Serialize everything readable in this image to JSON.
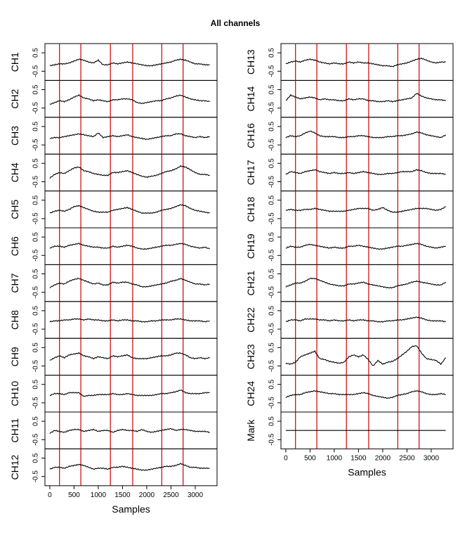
{
  "title": "All channels",
  "chart_data": {
    "type": "line",
    "title": "All channels",
    "xlabel": "Samples",
    "xlim": [
      -100,
      3450
    ],
    "ylim": [
      -1,
      1
    ],
    "x_ticks": [
      0,
      500,
      1000,
      1500,
      2000,
      2500,
      3000
    ],
    "y_ticks": [
      -0.5,
      0.5
    ],
    "marker_lines_x": [
      200,
      640,
      1250,
      1710,
      2310,
      2750
    ],
    "marker_color": "#cc0000",
    "line_color": "#000000",
    "sample_x": [
      0,
      100,
      200,
      300,
      400,
      500,
      600,
      700,
      800,
      900,
      1000,
      1100,
      1200,
      1300,
      1400,
      1500,
      1600,
      1700,
      1800,
      1900,
      2000,
      2100,
      2200,
      2300,
      2400,
      2500,
      2600,
      2700,
      2800,
      2900,
      3000,
      3100,
      3200,
      3300
    ],
    "panels": [
      {
        "column": "left",
        "channels": [
          {
            "name": "CH1",
            "values": [
              -0.2,
              -0.15,
              -0.1,
              -0.1,
              -0.05,
              0.05,
              0.15,
              0.1,
              0.0,
              -0.05,
              0.1,
              -0.15,
              -0.15,
              -0.05,
              -0.1,
              -0.05,
              0.0,
              -0.05,
              -0.1,
              -0.15,
              -0.2,
              -0.2,
              -0.15,
              -0.1,
              -0.05,
              0.0,
              0.1,
              0.15,
              0.1,
              0.0,
              -0.1,
              -0.1,
              -0.15,
              -0.15
            ]
          },
          {
            "name": "CH2",
            "values": [
              -0.3,
              -0.2,
              -0.1,
              -0.15,
              -0.05,
              0.1,
              0.2,
              0.05,
              0.0,
              -0.1,
              -0.05,
              -0.1,
              -0.15,
              -0.05,
              -0.05,
              0.0,
              0.0,
              -0.05,
              -0.2,
              -0.25,
              -0.2,
              -0.15,
              -0.1,
              -0.1,
              0.0,
              0.05,
              0.15,
              0.2,
              0.1,
              0.0,
              -0.05,
              -0.1,
              -0.1,
              -0.15
            ]
          },
          {
            "name": "CH3",
            "values": [
              -0.15,
              -0.1,
              -0.1,
              -0.05,
              0.0,
              0.05,
              0.1,
              0.05,
              0.0,
              -0.05,
              0.15,
              -0.1,
              -0.05,
              0.0,
              -0.05,
              0.0,
              0.05,
              -0.05,
              -0.1,
              -0.15,
              -0.2,
              -0.15,
              -0.1,
              -0.05,
              0.0,
              0.0,
              0.1,
              0.1,
              0.0,
              -0.05,
              -0.1,
              -0.05,
              -0.1,
              -0.05
            ]
          },
          {
            "name": "CH4",
            "values": [
              -0.3,
              -0.1,
              0.0,
              -0.05,
              0.1,
              0.25,
              0.3,
              0.1,
              0.05,
              -0.05,
              -0.1,
              -0.15,
              -0.15,
              0.0,
              0.0,
              0.05,
              0.1,
              0.0,
              -0.1,
              -0.2,
              -0.25,
              -0.2,
              -0.15,
              -0.05,
              0.05,
              0.1,
              0.2,
              0.35,
              0.3,
              0.15,
              0.0,
              -0.1,
              -0.1,
              -0.15
            ]
          },
          {
            "name": "CH5",
            "values": [
              -0.2,
              -0.1,
              -0.05,
              -0.1,
              0.0,
              0.15,
              0.2,
              0.1,
              0.0,
              -0.1,
              -0.15,
              -0.15,
              -0.15,
              -0.05,
              0.0,
              0.05,
              0.1,
              0.0,
              -0.1,
              -0.2,
              -0.2,
              -0.2,
              -0.15,
              -0.05,
              0.0,
              0.05,
              0.15,
              0.25,
              0.2,
              0.05,
              -0.05,
              -0.1,
              -0.15,
              -0.2
            ]
          },
          {
            "name": "CH6",
            "values": [
              -0.1,
              0.0,
              0.0,
              -0.05,
              0.05,
              0.1,
              0.15,
              0.05,
              0.0,
              -0.05,
              -0.05,
              -0.1,
              -0.1,
              0.0,
              -0.05,
              0.0,
              0.05,
              0.0,
              -0.1,
              -0.15,
              -0.15,
              -0.1,
              -0.05,
              0.0,
              0.05,
              0.05,
              0.1,
              0.15,
              0.1,
              0.0,
              -0.05,
              -0.1,
              -0.05,
              -0.15
            ]
          },
          {
            "name": "CH7",
            "values": [
              -0.25,
              -0.1,
              0.0,
              -0.05,
              0.1,
              0.2,
              0.25,
              0.15,
              0.05,
              -0.05,
              0.0,
              -0.1,
              -0.1,
              0.05,
              0.0,
              0.05,
              0.05,
              -0.05,
              -0.1,
              -0.2,
              -0.2,
              -0.15,
              -0.1,
              -0.05,
              0.0,
              0.1,
              0.15,
              0.25,
              0.15,
              0.05,
              -0.05,
              -0.05,
              -0.1,
              -0.05
            ]
          },
          {
            "name": "CH8",
            "values": [
              -0.1,
              -0.05,
              -0.05,
              0.0,
              0.0,
              0.05,
              0.05,
              0.0,
              0.05,
              0.0,
              0.0,
              -0.05,
              -0.05,
              0.0,
              -0.05,
              0.0,
              0.0,
              -0.05,
              -0.05,
              -0.1,
              -0.1,
              -0.05,
              -0.05,
              0.0,
              0.0,
              0.0,
              0.05,
              0.05,
              0.0,
              -0.05,
              -0.05,
              -0.05,
              -0.1,
              -0.05
            ]
          },
          {
            "name": "CH9",
            "values": [
              -0.2,
              -0.05,
              0.05,
              -0.05,
              0.1,
              0.15,
              0.2,
              0.05,
              0.0,
              -0.1,
              0.0,
              -0.05,
              -0.1,
              0.05,
              0.0,
              0.05,
              0.1,
              -0.05,
              -0.1,
              -0.1,
              -0.1,
              -0.05,
              0.0,
              0.05,
              0.05,
              0.1,
              0.2,
              0.2,
              0.1,
              -0.05,
              -0.1,
              -0.05,
              -0.1,
              -0.05
            ]
          },
          {
            "name": "CH10",
            "values": [
              -0.1,
              0.0,
              0.0,
              -0.05,
              0.05,
              0.05,
              0.05,
              -0.15,
              -0.1,
              -0.1,
              -0.05,
              -0.05,
              -0.05,
              0.0,
              -0.05,
              -0.05,
              0.0,
              -0.05,
              -0.1,
              -0.1,
              -0.1,
              -0.1,
              -0.05,
              0.0,
              0.0,
              0.05,
              0.1,
              0.2,
              0.05,
              0.0,
              0.0,
              0.0,
              0.05,
              0.05
            ]
          },
          {
            "name": "CH11",
            "values": [
              -0.15,
              0.0,
              -0.05,
              -0.1,
              0.0,
              0.05,
              0.05,
              -0.05,
              0.0,
              0.05,
              -0.05,
              0.0,
              0.0,
              -0.1,
              0.0,
              0.05,
              0.0,
              0.0,
              -0.05,
              0.05,
              -0.05,
              -0.1,
              -0.05,
              0.0,
              0.05,
              0.1,
              0.0,
              0.05,
              0.05,
              0.0,
              -0.05,
              -0.05,
              -0.05,
              -0.1
            ]
          },
          {
            "name": "CH12",
            "values": [
              -0.1,
              0.0,
              0.0,
              -0.05,
              0.05,
              0.1,
              0.15,
              0.1,
              0.0,
              -0.1,
              -0.05,
              -0.05,
              -0.1,
              0.0,
              0.0,
              0.05,
              0.0,
              -0.05,
              -0.1,
              -0.15,
              -0.15,
              -0.1,
              -0.05,
              0.0,
              0.05,
              0.05,
              0.1,
              0.2,
              0.1,
              0.0,
              0.0,
              -0.05,
              -0.05,
              -0.05
            ]
          }
        ]
      },
      {
        "column": "right",
        "channels": [
          {
            "name": "CH13",
            "values": [
              -0.1,
              0.0,
              0.05,
              0.0,
              0.1,
              0.15,
              0.1,
              0.0,
              -0.05,
              -0.1,
              -0.05,
              -0.1,
              -0.1,
              0.0,
              -0.05,
              0.0,
              -0.05,
              -0.05,
              -0.1,
              -0.15,
              -0.2,
              -0.2,
              -0.25,
              -0.15,
              -0.1,
              -0.05,
              0.05,
              0.15,
              0.2,
              0.1,
              0.0,
              -0.05,
              0.0,
              0.0
            ]
          },
          {
            "name": "CH14",
            "values": [
              -0.1,
              0.2,
              0.1,
              0.0,
              0.05,
              0.1,
              0.05,
              -0.05,
              0.0,
              -0.05,
              -0.05,
              -0.1,
              -0.1,
              0.0,
              -0.05,
              0.0,
              0.0,
              -0.1,
              -0.1,
              -0.15,
              -0.15,
              -0.1,
              -0.15,
              -0.1,
              -0.05,
              0.0,
              0.05,
              0.3,
              0.15,
              0.05,
              0.0,
              -0.05,
              -0.05,
              -0.1
            ]
          },
          {
            "name": "CH16",
            "values": [
              -0.1,
              0.0,
              -0.05,
              0.0,
              0.15,
              0.25,
              0.15,
              0.0,
              -0.05,
              -0.05,
              -0.05,
              -0.1,
              -0.1,
              -0.05,
              -0.05,
              0.0,
              0.0,
              -0.05,
              -0.1,
              -0.1,
              -0.1,
              -0.05,
              -0.05,
              0.0,
              0.0,
              0.05,
              0.1,
              0.2,
              0.15,
              0.05,
              0.0,
              -0.05,
              -0.1,
              0.05
            ]
          },
          {
            "name": "CH17",
            "values": [
              -0.1,
              0.05,
              0.0,
              -0.05,
              0.05,
              0.1,
              0.15,
              0.05,
              0.0,
              -0.05,
              0.0,
              -0.05,
              -0.05,
              0.0,
              -0.05,
              0.0,
              0.05,
              0.0,
              -0.05,
              -0.1,
              -0.1,
              -0.05,
              -0.05,
              0.0,
              0.05,
              0.05,
              0.05,
              0.15,
              0.1,
              0.0,
              -0.05,
              -0.05,
              -0.05,
              -0.1
            ]
          },
          {
            "name": "CH18",
            "values": [
              -0.05,
              0.0,
              -0.05,
              -0.05,
              0.0,
              0.0,
              0.05,
              0.0,
              -0.05,
              -0.1,
              -0.1,
              -0.1,
              -0.1,
              -0.05,
              0.0,
              0.05,
              0.05,
              0.05,
              -0.05,
              0.0,
              0.1,
              -0.05,
              -0.15,
              -0.15,
              -0.1,
              -0.05,
              0.0,
              0.05,
              0.05,
              0.05,
              0.0,
              -0.05,
              0.0,
              0.15
            ]
          },
          {
            "name": "CH19",
            "values": [
              -0.1,
              0.0,
              -0.05,
              -0.05,
              0.05,
              0.1,
              0.05,
              0.0,
              -0.05,
              -0.1,
              -0.05,
              -0.1,
              -0.1,
              0.0,
              0.0,
              0.05,
              0.0,
              -0.05,
              -0.1,
              -0.15,
              -0.15,
              -0.1,
              -0.05,
              0.0,
              0.0,
              0.05,
              0.1,
              0.15,
              0.1,
              0.0,
              -0.05,
              -0.1,
              -0.05,
              0.0
            ]
          },
          {
            "name": "CH21",
            "values": [
              -0.2,
              -0.1,
              0.0,
              0.0,
              0.1,
              0.25,
              0.25,
              0.15,
              0.05,
              -0.05,
              -0.1,
              -0.15,
              -0.15,
              -0.05,
              -0.05,
              0.0,
              0.05,
              -0.05,
              -0.1,
              -0.15,
              -0.2,
              -0.25,
              -0.25,
              -0.15,
              -0.1,
              -0.05,
              0.05,
              0.1,
              0.05,
              0.0,
              -0.05,
              -0.1,
              -0.1,
              0.05
            ]
          },
          {
            "name": "CH22",
            "values": [
              -0.1,
              0.0,
              0.0,
              -0.05,
              0.05,
              0.05,
              0.05,
              0.0,
              0.0,
              -0.05,
              0.0,
              -0.05,
              -0.05,
              0.0,
              -0.05,
              0.0,
              0.0,
              -0.05,
              -0.05,
              -0.1,
              -0.1,
              -0.05,
              -0.05,
              0.0,
              0.0,
              0.05,
              0.1,
              0.15,
              0.1,
              0.0,
              -0.05,
              -0.05,
              -0.05,
              -0.1
            ]
          },
          {
            "name": "CH23",
            "values": [
              -0.35,
              -0.4,
              -0.3,
              0.0,
              0.1,
              0.2,
              0.3,
              -0.1,
              -0.15,
              -0.25,
              -0.3,
              -0.35,
              -0.3,
              0.0,
              0.1,
              0.0,
              0.1,
              -0.15,
              -0.5,
              -0.2,
              -0.4,
              -0.3,
              -0.25,
              -0.1,
              0.1,
              0.3,
              0.55,
              0.6,
              0.2,
              -0.1,
              -0.15,
              -0.2,
              -0.4,
              -0.05
            ]
          },
          {
            "name": "CH24",
            "values": [
              -0.2,
              -0.1,
              -0.05,
              -0.05,
              0.05,
              0.1,
              0.15,
              0.1,
              0.05,
              0.0,
              0.0,
              -0.05,
              -0.05,
              -0.05,
              -0.05,
              0.0,
              0.05,
              0.0,
              -0.1,
              -0.15,
              -0.2,
              -0.25,
              -0.2,
              -0.1,
              -0.05,
              0.0,
              0.1,
              0.15,
              0.1,
              0.0,
              -0.05,
              -0.05,
              0.0,
              -0.05
            ]
          },
          {
            "name": "Mark",
            "values": [
              0,
              0,
              0,
              0,
              0,
              0,
              0,
              0,
              0,
              0,
              0,
              0,
              0,
              0,
              0,
              0,
              0,
              0,
              0,
              0,
              0,
              0,
              0,
              0,
              0,
              0,
              0,
              0,
              0,
              0,
              0,
              0,
              0,
              0
            ]
          }
        ]
      }
    ]
  }
}
